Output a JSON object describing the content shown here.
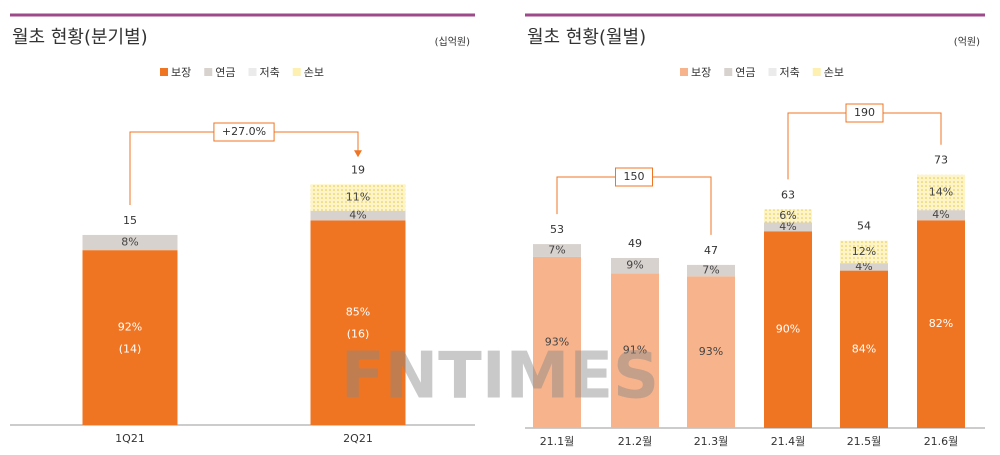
{
  "chart_data": [
    {
      "type": "stacked_bar",
      "title": "월초 현황(분기별)",
      "unit": "(십억원)",
      "categories": [
        "1Q21",
        "2Q21"
      ],
      "totals": [
        15,
        19
      ],
      "annotations": [
        "+27.0%"
      ],
      "series": [
        {
          "name": "보장",
          "color": "#f07522",
          "values": [
            92,
            85
          ],
          "value_labels": [
            "92%",
            "85%"
          ],
          "amounts": [
            14,
            16
          ],
          "amount_labels": [
            "(14)",
            "(16)"
          ]
        },
        {
          "name": "연금",
          "color": "#d8d2ce",
          "values": [
            8,
            4
          ],
          "value_labels": [
            "8%",
            "4%"
          ]
        },
        {
          "name": "저축",
          "color": "#ebebeb",
          "values": [
            null,
            null
          ]
        },
        {
          "name": "손보",
          "color": "#fdf0b0",
          "values": [
            null,
            11
          ],
          "value_labels": [
            null,
            "11%"
          ]
        }
      ]
    },
    {
      "type": "stacked_bar",
      "title": "월초 현황(월별)",
      "unit": "(억원)",
      "categories": [
        "21.1월",
        "21.2월",
        "21.3월",
        "21.4월",
        "21.5월",
        "21.6월"
      ],
      "totals": [
        53,
        49,
        47,
        63,
        54,
        73
      ],
      "annotations": [
        "150",
        "190"
      ],
      "series": [
        {
          "name": "보장",
          "color": "#f7b48c",
          "colors": [
            "#f7b48c",
            "#f7b48c",
            "#f7b48c",
            "#f07522",
            "#f07522",
            "#f07522"
          ],
          "values": [
            93,
            91,
            93,
            90,
            84,
            82
          ],
          "value_labels": [
            "93%",
            "91%",
            "93%",
            "90%",
            "84%",
            "82%"
          ]
        },
        {
          "name": "연금",
          "color": "#d8d2ce",
          "values": [
            7,
            9,
            7,
            4,
            4,
            4
          ],
          "value_labels": [
            "7%",
            "9%",
            "7%",
            "4%",
            "4%",
            "4%"
          ]
        },
        {
          "name": "저축",
          "color": "#ebebeb",
          "values": [
            null,
            null,
            null,
            null,
            null,
            null
          ]
        },
        {
          "name": "손보",
          "color": "#fdf0b0",
          "values": [
            null,
            null,
            null,
            6,
            12,
            14
          ],
          "value_labels": [
            null,
            null,
            null,
            "6%",
            "12%",
            "14%"
          ]
        }
      ]
    }
  ],
  "watermark": "FNTIMES"
}
